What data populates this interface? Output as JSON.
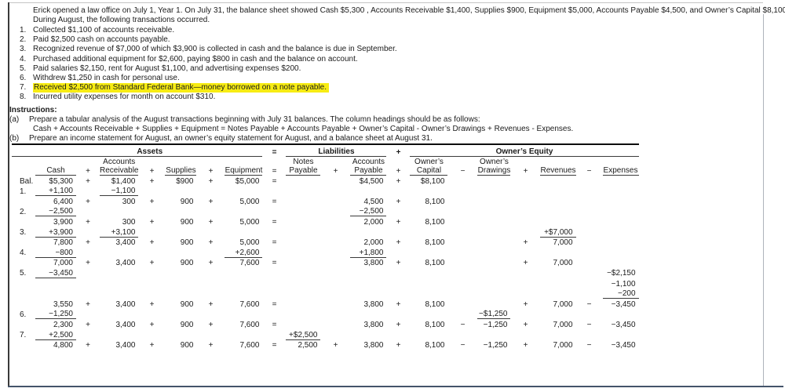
{
  "colors": {
    "highlight": "#f7ec13",
    "bottom_border": "#44546a",
    "page_border": "#3a3a3a"
  },
  "problem": {
    "intro_lines": [
      "Erick opened a law office on July 1, Year 1. On July 31, the balance sheet showed Cash $5,300 , Accounts Receivable $1,400, Supplies $900, Equipment $5,000, Accounts Payable $4,500, and Owner’s Capital $8,100.",
      "During August, the following transactions occurred."
    ],
    "transactions": [
      {
        "num": "1.",
        "text": "Collected $1,100 of accounts receivable.",
        "highlight": false
      },
      {
        "num": "2.",
        "text": "Paid $2,500 cash on accounts payable.",
        "highlight": false
      },
      {
        "num": "3.",
        "text": "Recognized revenue of $7,000 of which $3,900 is collected in cash and the balance is due in September.",
        "highlight": false
      },
      {
        "num": "4.",
        "text": "Purchased additional equipment for $2,600, paying $800 in cash and the balance on account.",
        "highlight": false
      },
      {
        "num": "5.",
        "text": "Paid salaries $2,150, rent for August $1,100, and advertising expenses $200.",
        "highlight": false
      },
      {
        "num": "6.",
        "text": "Withdrew $1,250 in cash for personal use.",
        "highlight": false
      },
      {
        "num": "7.",
        "text": "Received $2,500 from Standard Federal Bank—money borrowed on a note payable.",
        "highlight": true
      },
      {
        "num": "8.",
        "text": "Incurred utility expenses for month on account $310.",
        "highlight": false
      }
    ],
    "instructions_label": "Instructions:",
    "instructions": [
      {
        "num": "(a)",
        "lines": [
          "Prepare a tabular analysis of the August transactions beginning with July 31 balances. The column headings should be as follows:",
          "Cash + Accounts Receivable + Supplies + Equipment = Notes Payable + Accounts Payable + Owner’s Capital - Owner’s  Drawings  + Revenues - Expenses."
        ]
      },
      {
        "num": "(b)",
        "lines": [
          "Prepare an income statement for August, an owner’s equity statement for August, and a balance sheet at August 31."
        ]
      }
    ]
  },
  "table": {
    "groups": {
      "assets": "Assets",
      "equals": "=",
      "liabilities": "Liabilities",
      "plus": "+",
      "owners_equity": "Owner’s Equity"
    },
    "columns": [
      {
        "key": "cash",
        "line1": "",
        "line2": "Cash"
      },
      {
        "key": "ar",
        "line1": "Accounts",
        "line2": "Receivable"
      },
      {
        "key": "sup",
        "line1": "",
        "line2": "Supplies"
      },
      {
        "key": "eq",
        "line1": "",
        "line2": "Equipment"
      },
      {
        "key": "np",
        "line1": "Notes",
        "line2": "Payable"
      },
      {
        "key": "ap",
        "line1": "Accounts",
        "line2": "Payable"
      },
      {
        "key": "oc",
        "line1": "Owner’s",
        "line2": "Capital"
      },
      {
        "key": "od",
        "line1": "Owner’s",
        "line2": "Drawings"
      },
      {
        "key": "rev",
        "line1": "",
        "line2": "Revenues"
      },
      {
        "key": "exp",
        "line1": "",
        "line2": "Expenses"
      }
    ],
    "header_ops": {
      "op1": "+",
      "op2": "+",
      "op3": "+",
      "op4": "=",
      "op5": "+",
      "op6": "+",
      "op7": "−",
      "op8": "+",
      "op9": "−"
    },
    "rows": [
      {
        "label": "Bal.",
        "cells": {
          "cash": "$5,300",
          "ar": "$1,400",
          "sup": "$900",
          "eq": "$5,000",
          "ap": "$4,500",
          "oc": "$8,100"
        },
        "ops": {
          "op1": "+",
          "op2": "+",
          "op3": "+",
          "op4": "=",
          "op6": "+"
        }
      },
      {
        "label": "1.",
        "cells": {
          "cash": "+1,100",
          "ar": "−1,100"
        },
        "underline": [
          "cash",
          "ar"
        ]
      },
      {
        "cells": {
          "cash": "6,400",
          "ar": "300",
          "sup": "900",
          "eq": "5,000",
          "ap": "4,500",
          "oc": "8,100"
        },
        "ops": {
          "op1": "+",
          "op2": "+",
          "op3": "+",
          "op4": "=",
          "op6": "+"
        }
      },
      {
        "label": "2.",
        "cells": {
          "cash": "−2,500",
          "ap": "−2,500"
        },
        "underline": [
          "cash",
          "ap"
        ]
      },
      {
        "cells": {
          "cash": "3,900",
          "ar": "300",
          "sup": "900",
          "eq": "5,000",
          "ap": "2,000",
          "oc": "8,100"
        },
        "ops": {
          "op1": "+",
          "op2": "+",
          "op3": "+",
          "op4": "=",
          "op6": "+"
        }
      },
      {
        "label": "3.",
        "cells": {
          "cash": "+3,900",
          "ar": "+3,100",
          "rev": "+$7,000"
        },
        "underline": [
          "cash",
          "ar",
          "rev"
        ]
      },
      {
        "cells": {
          "cash": "7,800",
          "ar": "3,400",
          "sup": "900",
          "eq": "5,000",
          "ap": "2,000",
          "oc": "8,100",
          "rev": "7,000"
        },
        "ops": {
          "op1": "+",
          "op2": "+",
          "op3": "+",
          "op4": "=",
          "op6": "+",
          "op8": "+"
        }
      },
      {
        "label": "4.",
        "cells": {
          "cash": "−800",
          "eq": "+2,600",
          "ap": "+1,800"
        },
        "underline": [
          "cash",
          "eq",
          "ap"
        ]
      },
      {
        "cells": {
          "cash": "7,000",
          "ar": "3,400",
          "sup": "900",
          "eq": "7,600",
          "ap": "3,800",
          "oc": "8,100",
          "rev": "7,000"
        },
        "ops": {
          "op1": "+",
          "op2": "+",
          "op3": "+",
          "op4": "=",
          "op6": "+",
          "op8": "+"
        }
      },
      {
        "label": "5.",
        "cells": {
          "cash": "−3,450",
          "exp": "−$2,150"
        },
        "underline": [
          "cash"
        ]
      },
      {
        "cells": {
          "exp": "−1,100"
        }
      },
      {
        "cells": {
          "exp": "−200"
        },
        "underline": [
          "exp"
        ]
      },
      {
        "cells": {
          "cash": "3,550",
          "ar": "3,400",
          "sup": "900",
          "eq": "7,600",
          "ap": "3,800",
          "oc": "8,100",
          "rev": "7,000",
          "exp": "−3,450"
        },
        "ops": {
          "op1": "+",
          "op2": "+",
          "op3": "+",
          "op4": "=",
          "op6": "+",
          "op8": "+",
          "op9": "−"
        }
      },
      {
        "label": "6.",
        "cells": {
          "cash": "−1,250",
          "od": "−$1,250"
        },
        "underline": [
          "cash",
          "od"
        ]
      },
      {
        "cells": {
          "cash": "2,300",
          "ar": "3,400",
          "sup": "900",
          "eq": "7,600",
          "ap": "3,800",
          "oc": "8,100",
          "od": "−1,250",
          "rev": "7,000",
          "exp": "−3,450"
        },
        "ops": {
          "op1": "+",
          "op2": "+",
          "op3": "+",
          "op4": "=",
          "op6": "+",
          "op7": "−",
          "op8": "+",
          "op9": "−"
        }
      },
      {
        "label": "7.",
        "cells": {
          "cash": "+2,500",
          "np": "+$2,500"
        },
        "underline": [
          "cash",
          "np"
        ]
      },
      {
        "cells": {
          "cash": "4,800",
          "ar": "3,400",
          "sup": "900",
          "eq": "7,600",
          "np": "2,500",
          "ap": "3,800",
          "oc": "8,100",
          "od": "−1,250",
          "rev": "7,000",
          "exp": "−3,450"
        },
        "ops": {
          "op1": "+",
          "op2": "+",
          "op3": "+",
          "op4": "=",
          "op5": "+",
          "op6": "+",
          "op7": "−",
          "op8": "+",
          "op9": "−"
        }
      }
    ]
  }
}
